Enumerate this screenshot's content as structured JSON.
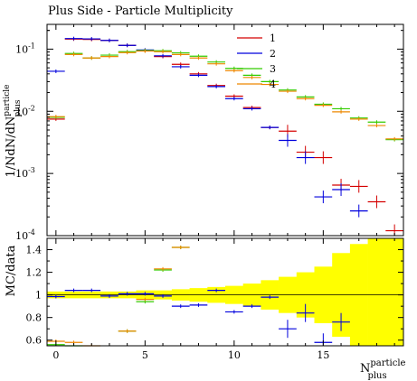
{
  "chart_data": {
    "type": "scatter",
    "title": "Plus Side - Particle Multiplicity",
    "xlabel": "N",
    "xlabel_super": "particle",
    "xlabel_sub": "plus",
    "ylabel_main_prefix": "1/N",
    "ylabel_main_frac": "dN/dN",
    "ylabel_main_super": "particle",
    "ylabel_main_sub": "plus",
    "ylabel_ratio": "MC/data",
    "xlim": [
      -0.5,
      19.5
    ],
    "ylim_main": [
      0.0001,
      0.25
    ],
    "ylim_ratio": [
      0.55,
      1.5
    ],
    "y_scale_main": "log",
    "x_ticks": [
      "0",
      "5",
      "10",
      "15"
    ],
    "y_ticks_main": [
      {
        "value": 0.1,
        "base": "10",
        "exp": "-1"
      },
      {
        "value": 0.01,
        "base": "10",
        "exp": "-2"
      },
      {
        "value": 0.001,
        "base": "10",
        "exp": "-3"
      },
      {
        "value": 0.0001,
        "base": "10",
        "exp": "-4"
      }
    ],
    "y_ticks_ratio": [
      "0.6",
      "0.8",
      "1",
      "1.2",
      "1.4"
    ],
    "legend_position": "top-right",
    "data_band_color": "#ffff00",
    "series": [
      {
        "name": "1",
        "color": "#d40000",
        "points": [
          [
            0,
            0.0075
          ],
          [
            1,
            0.145
          ],
          [
            2,
            0.143
          ],
          [
            3,
            0.138
          ],
          [
            4,
            0.115
          ],
          [
            5,
            0.095
          ],
          [
            6,
            0.076
          ],
          [
            7,
            0.057
          ],
          [
            8,
            0.04
          ],
          [
            9,
            0.026
          ],
          [
            10,
            0.0175
          ],
          [
            11,
            0.0115
          ],
          [
            12,
            0.0055
          ],
          [
            13,
            0.0048
          ],
          [
            14,
            0.0022
          ],
          [
            15,
            0.0018
          ],
          [
            16,
            0.00065
          ],
          [
            17,
            0.00062
          ],
          [
            18,
            0.00035
          ],
          [
            19,
            0.00012
          ]
        ],
        "ratio": []
      },
      {
        "name": "2",
        "color": "#0000dd",
        "points": [
          [
            0,
            0.044
          ],
          [
            1,
            0.148
          ],
          [
            2,
            0.146
          ],
          [
            3,
            0.138
          ],
          [
            4,
            0.115
          ],
          [
            5,
            0.097
          ],
          [
            6,
            0.078
          ],
          [
            7,
            0.052
          ],
          [
            8,
            0.038
          ],
          [
            9,
            0.025
          ],
          [
            10,
            0.016
          ],
          [
            11,
            0.011
          ],
          [
            12,
            0.0055
          ],
          [
            13,
            0.0034
          ],
          [
            14,
            0.0018
          ],
          [
            15,
            0.00042
          ],
          [
            16,
            0.00055
          ],
          [
            17,
            0.00025
          ]
        ],
        "ratio": [
          [
            0,
            0.985
          ],
          [
            1,
            1.04
          ],
          [
            2,
            1.04
          ],
          [
            3,
            0.99
          ],
          [
            4,
            1.01
          ],
          [
            5,
            1.01
          ],
          [
            6,
            0.99
          ],
          [
            7,
            0.9
          ],
          [
            8,
            0.91
          ],
          [
            9,
            1.04
          ],
          [
            10,
            0.85
          ],
          [
            11,
            0.9
          ],
          [
            12,
            0.98
          ],
          [
            13,
            0.7
          ],
          [
            14,
            0.84
          ],
          [
            15,
            0.58
          ],
          [
            16,
            0.76
          ]
        ]
      },
      {
        "name": "3",
        "color": "#33cc00",
        "points": [
          [
            0,
            0.008
          ],
          [
            1,
            0.085
          ],
          [
            2,
            0.072
          ],
          [
            3,
            0.08
          ],
          [
            4,
            0.091
          ],
          [
            5,
            0.095
          ],
          [
            6,
            0.094
          ],
          [
            7,
            0.087
          ],
          [
            8,
            0.077
          ],
          [
            9,
            0.062
          ],
          [
            10,
            0.049
          ],
          [
            11,
            0.038
          ],
          [
            12,
            0.03
          ],
          [
            13,
            0.022
          ],
          [
            14,
            0.017
          ],
          [
            15,
            0.013
          ],
          [
            16,
            0.011
          ],
          [
            17,
            0.0078
          ],
          [
            18,
            0.0067
          ],
          [
            19,
            0.0035
          ]
        ],
        "ratio": [
          [
            0,
            0.56
          ],
          [
            1,
            0.55
          ],
          [
            2,
            0.54
          ],
          [
            4,
            0.68
          ],
          [
            5,
            0.94
          ],
          [
            6,
            1.22
          ],
          [
            7,
            1.42
          ]
        ]
      },
      {
        "name": "4",
        "color": "#ee8800",
        "points": [
          [
            0,
            0.0082
          ],
          [
            1,
            0.082
          ],
          [
            2,
            0.072
          ],
          [
            3,
            0.076
          ],
          [
            4,
            0.088
          ],
          [
            5,
            0.093
          ],
          [
            6,
            0.091
          ],
          [
            7,
            0.082
          ],
          [
            8,
            0.072
          ],
          [
            9,
            0.058
          ],
          [
            10,
            0.045
          ],
          [
            11,
            0.035
          ],
          [
            12,
            0.027
          ],
          [
            13,
            0.021
          ],
          [
            14,
            0.016
          ],
          [
            15,
            0.0125
          ],
          [
            16,
            0.0098
          ],
          [
            17,
            0.0075
          ],
          [
            18,
            0.0059
          ],
          [
            19,
            0.0036
          ]
        ],
        "ratio": [
          [
            0,
            0.59
          ],
          [
            1,
            0.58
          ],
          [
            2,
            0.55
          ],
          [
            4,
            0.68
          ],
          [
            5,
            0.96
          ],
          [
            6,
            1.23
          ],
          [
            7,
            1.42
          ]
        ]
      }
    ],
    "band_halfwidth": [
      0.03,
      0.03,
      0.03,
      0.03,
      0.03,
      0.04,
      0.04,
      0.05,
      0.06,
      0.07,
      0.08,
      0.1,
      0.13,
      0.16,
      0.2,
      0.25,
      0.37,
      0.45,
      0.5,
      0.5
    ]
  }
}
